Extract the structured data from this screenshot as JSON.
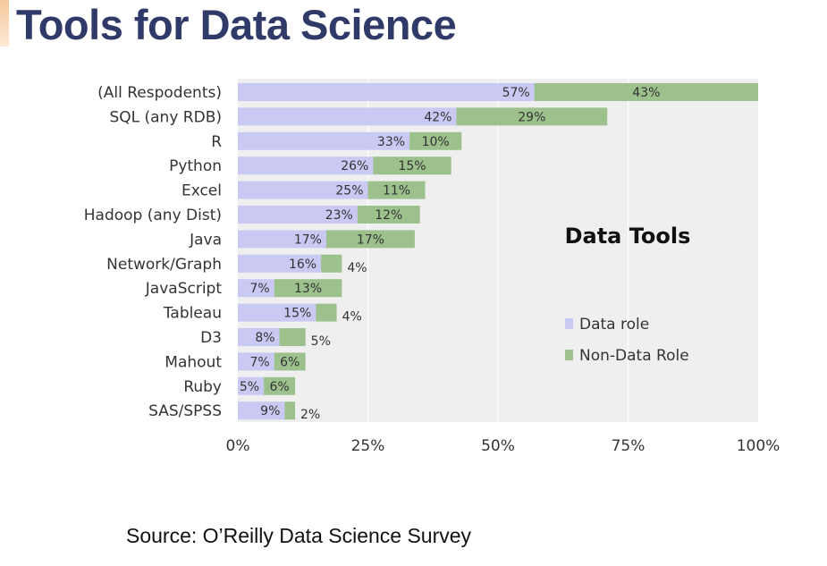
{
  "slide": {
    "title": "Tools for Data Science",
    "source": "Source: O’Reilly Data Science Survey"
  },
  "colors": {
    "data_role": "#c9c9f3",
    "non_data_role": "#9dc18d",
    "plot_background": "#efefef",
    "title": "#2f3a68"
  },
  "chart_data": {
    "type": "bar",
    "orientation": "horizontal",
    "stacked": true,
    "title": "Data Tools",
    "categories": [
      "(All Respodents)",
      "SQL (any RDB)",
      "R",
      "Python",
      "Excel",
      "Hadoop (any Dist)",
      "Java",
      "Network/Graph",
      "JavaScript",
      "Tableau",
      "D3",
      "Mahout",
      "Ruby",
      "SAS/SPSS"
    ],
    "series": [
      {
        "name": "Data role",
        "values": [
          57,
          42,
          33,
          26,
          25,
          23,
          17,
          16,
          7,
          15,
          8,
          7,
          5,
          9
        ],
        "labels": [
          "57%",
          "42%",
          "33%",
          "26%",
          "25%",
          "23%",
          "17%",
          "16%",
          "7%",
          "15%",
          "8%",
          "7%",
          "5%",
          "9%"
        ]
      },
      {
        "name": "Non-Data Role",
        "values": [
          43,
          29,
          10,
          15,
          11,
          12,
          17,
          4,
          13,
          4,
          5,
          6,
          6,
          2
        ],
        "labels": [
          "43%",
          "29%",
          "10%",
          "15%",
          "11%",
          "12%",
          "17%",
          "4%",
          "13%",
          "4%",
          "5%",
          "6%",
          "6%",
          "2%"
        ]
      }
    ],
    "xlim": [
      0,
      100
    ],
    "xticks": [
      "0%",
      "25%",
      "50%",
      "75%",
      "100%"
    ],
    "grid": true,
    "legend_position": "right"
  }
}
